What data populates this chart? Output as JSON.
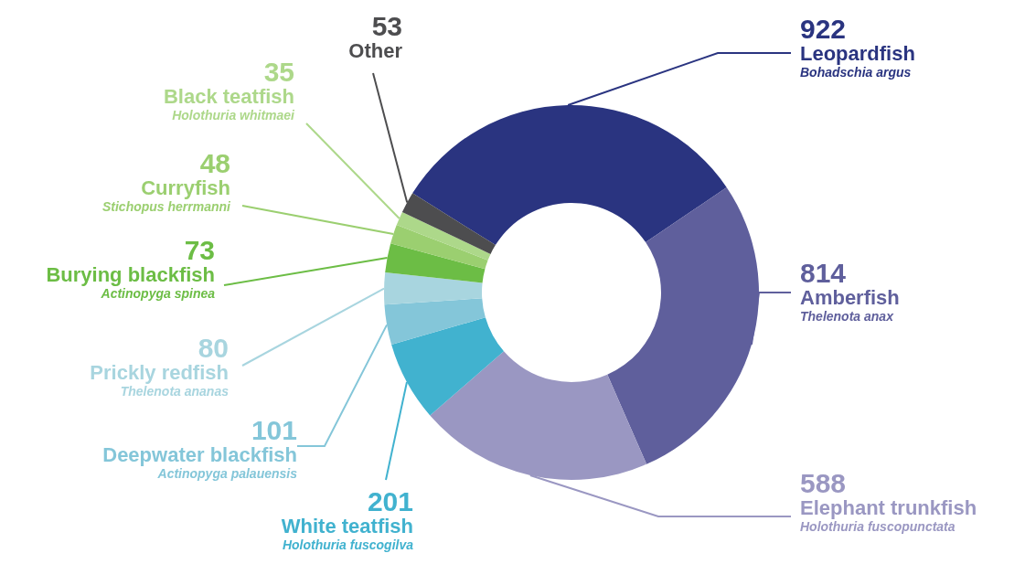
{
  "chart_data": {
    "type": "donut",
    "categories": [
      "Leopardfish",
      "Amberfish",
      "Elephant trunkfish",
      "White teatfish",
      "Deepwater blackfish",
      "Prickly redfish",
      "Burying blackfish",
      "Curryfish",
      "Black teatfish",
      "Other"
    ],
    "values": [
      922,
      814,
      588,
      201,
      101,
      80,
      73,
      48,
      35,
      53
    ],
    "colors": [
      "#2a3480",
      "#5f5f9c",
      "#9a97c2",
      "#41b2cf",
      "#84c6d9",
      "#a8d5df",
      "#6cbd45",
      "#9bcf70",
      "#add88a",
      "#4d4d4f"
    ],
    "annotations": [
      "Bohadschia argus",
      "Thelenota anax",
      "Holothuria fuscopunctata",
      "Holothuria fuscogilva",
      "Actinopyga palauensis",
      "Thelenota ananas",
      "Actinopyga spinea",
      "Stichopus herrmanni",
      "Holothuria whitmaei"
    ],
    "data_labels": true,
    "legend": false
  }
}
